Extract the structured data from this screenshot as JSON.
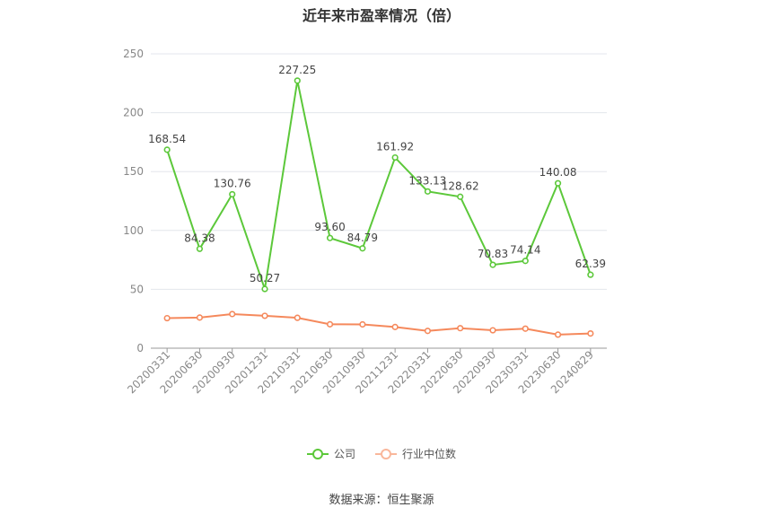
{
  "chart_data": {
    "type": "line",
    "title": "近年来市盈率情况（倍）",
    "categories": [
      "20200331",
      "20200630",
      "20200930",
      "20201231",
      "20210331",
      "20210630",
      "20210930",
      "20211231",
      "20220331",
      "20220630",
      "20220930",
      "20230331",
      "20230630",
      "20240829"
    ],
    "ylim": [
      0,
      250
    ],
    "yticks": [
      0,
      50,
      100,
      150,
      200,
      250
    ],
    "grid": true,
    "legend_position": "bottom",
    "series": [
      {
        "name": "公司",
        "color": "#5cc83a",
        "values": [
          168.54,
          84.38,
          130.76,
          50.27,
          227.25,
          93.6,
          84.79,
          161.92,
          133.13,
          128.62,
          70.83,
          74.14,
          140.08,
          62.39
        ],
        "labels": [
          "168.54",
          "84.38",
          "130.76",
          "50.27",
          "227.25",
          "93.60",
          "84.79",
          "161.92",
          "133.13",
          "128.62",
          "70.83",
          "74.14",
          "140.08",
          "62.39"
        ]
      },
      {
        "name": "行业中位数",
        "color": "#f5895c",
        "values": [
          25.5,
          26.0,
          29.0,
          27.5,
          25.8,
          20.3,
          20.2,
          18.0,
          14.7,
          17.0,
          15.2,
          16.6,
          11.5,
          12.5
        ]
      }
    ]
  },
  "source_text": "数据来源：恒生聚源"
}
